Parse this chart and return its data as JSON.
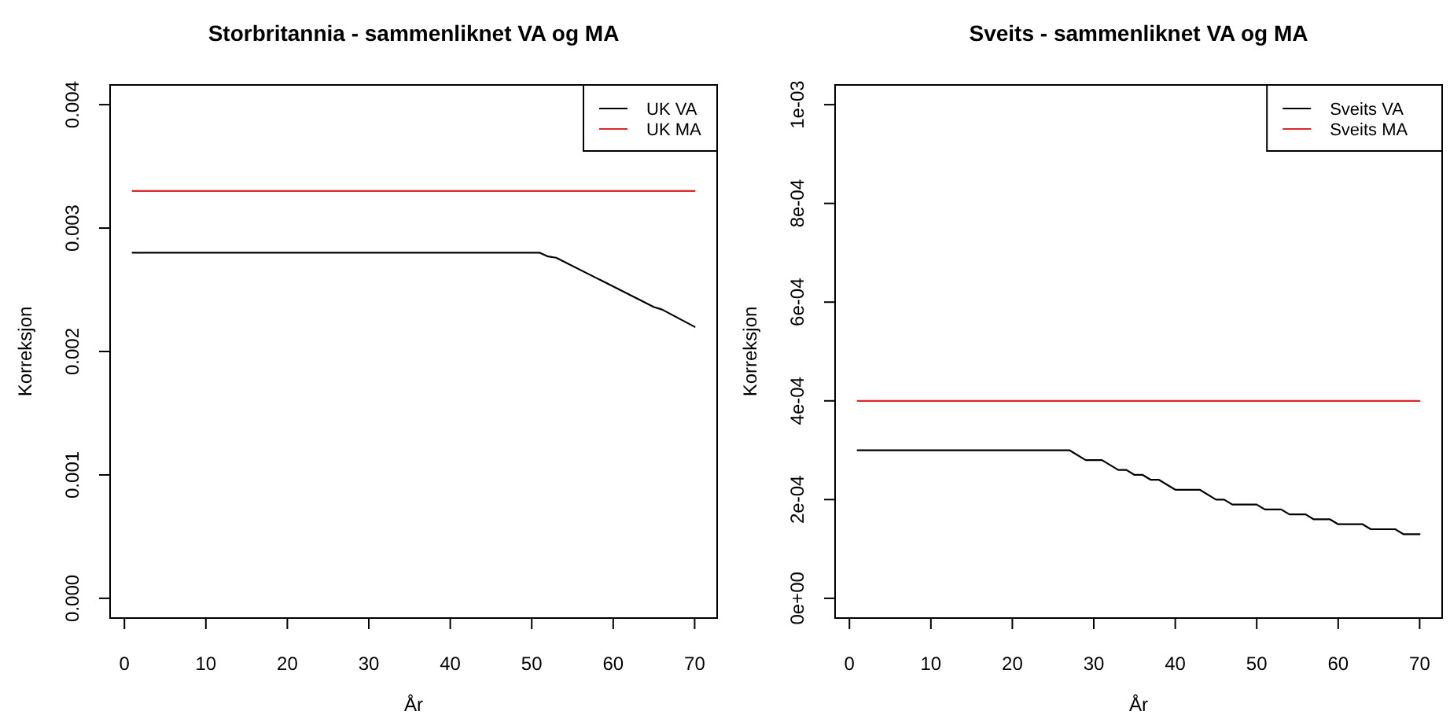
{
  "chart_data": [
    {
      "type": "line",
      "title": "Storbritannia - sammenliknet VA og MA",
      "xlabel": "År",
      "ylabel": "Korreksjon",
      "legend": "top right",
      "xlim": [
        -1.76,
        72.76
      ],
      "xticks": [
        0,
        10,
        20,
        30,
        40,
        50,
        60,
        70
      ],
      "ylim": [
        -0.00016,
        0.00416
      ],
      "yticks": [
        {
          "value": 0,
          "label": "0.000"
        },
        0.001,
        0.002,
        0.003,
        0.004
      ],
      "series": [
        {
          "name": "UK VA",
          "color": "#000000",
          "x": [
            1,
            51,
            52,
            53,
            65,
            66,
            70
          ],
          "values": [
            0.0028,
            0.0028,
            0.00277,
            0.00276,
            0.00236,
            0.00234,
            0.0022
          ]
        },
        {
          "name": "UK MA",
          "color": "#dc2828",
          "x": [
            1,
            70
          ],
          "values": [
            0.0033,
            0.0033
          ]
        }
      ]
    },
    {
      "type": "line",
      "title": "Sveits - sammenliknet VA og MA",
      "xlabel": "År",
      "ylabel": "Korreksjon",
      "legend": "top right",
      "xlim": [
        -1.76,
        72.76
      ],
      "xticks": [
        0,
        10,
        20,
        30,
        40,
        50,
        60,
        70
      ],
      "ylim": [
        -4e-05,
        0.00104
      ],
      "yticks": [
        {
          "value": 0,
          "label": "0e+00"
        },
        {
          "value": 0.0002,
          "label": "2e-04"
        },
        {
          "value": 0.0004,
          "label": "4e-04"
        },
        {
          "value": 0.0006,
          "label": "6e-04"
        },
        {
          "value": 0.0008,
          "label": "8e-04"
        },
        {
          "value": 0.001,
          "label": "1e-03"
        }
      ],
      "series": [
        {
          "name": "Sveits VA",
          "color": "#000000",
          "x": [
            1,
            27,
            29,
            31,
            33,
            34,
            35,
            36,
            37,
            38,
            40,
            43,
            45,
            46,
            47,
            50,
            51,
            53,
            54,
            56,
            57,
            59,
            60,
            63,
            64,
            67,
            68,
            70
          ],
          "values": [
            0.0003,
            0.0003,
            0.00028,
            0.00028,
            0.00026,
            0.00026,
            0.00025,
            0.00025,
            0.00024,
            0.00024,
            0.00022,
            0.00022,
            0.0002,
            0.0002,
            0.00019,
            0.00019,
            0.00018,
            0.00018,
            0.00017,
            0.00017,
            0.00016,
            0.00016,
            0.00015,
            0.00015,
            0.00014,
            0.00014,
            0.00013,
            0.00013
          ]
        },
        {
          "name": "Sveits MA",
          "color": "#dc2828",
          "x": [
            1,
            70
          ],
          "values": [
            0.0004,
            0.0004
          ]
        }
      ]
    }
  ]
}
